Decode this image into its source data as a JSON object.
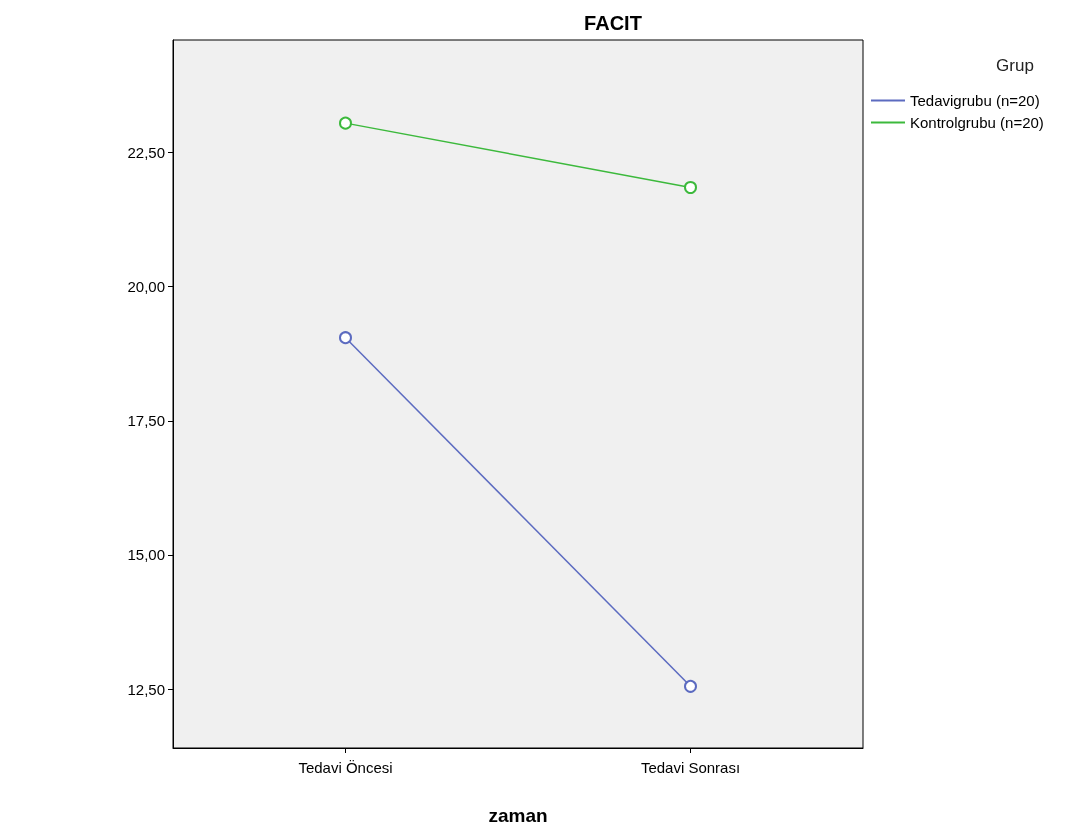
{
  "chart_data": {
    "type": "line",
    "title": "FACIT",
    "xlabel": "zaman",
    "legend_title": "Grup",
    "categories": [
      "Tedavi Öncesi",
      "Tedavi Sonrası"
    ],
    "series": [
      {
        "name": "Tedavigrubu (n=20)",
        "color": "#5c6bc0",
        "values": [
          19.05,
          12.55
        ]
      },
      {
        "name": "Kontrolgrubu (n=20)",
        "color": "#3cb93c",
        "values": [
          23.05,
          21.85
        ]
      }
    ],
    "ylim": [
      11.4,
      24.6
    ],
    "yticks": [
      {
        "value": 12.5,
        "label": "12,50"
      },
      {
        "value": 15,
        "label": "15,00"
      },
      {
        "value": 17.5,
        "label": "17,50"
      },
      {
        "value": 20,
        "label": "20,00"
      },
      {
        "value": 22.5,
        "label": "22,50"
      }
    ],
    "grid": false,
    "legend": "right",
    "marker": "circle"
  }
}
